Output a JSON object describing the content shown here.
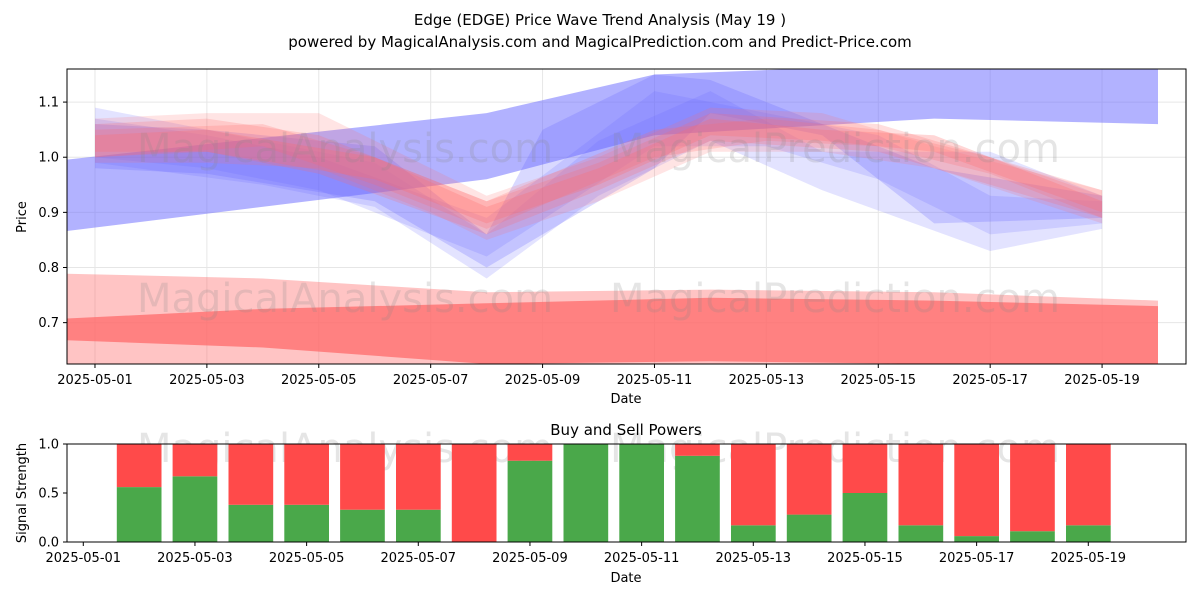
{
  "title_line1": "Edge (EDGE) Price Wave Trend Analysis (May 19 )",
  "title_line2": "powered by MagicalAnalysis.com and MagicalPrediction.com and Predict-Price.com",
  "watermarks": [
    "MagicalAnalysis.com",
    "MagicalPrediction.com"
  ],
  "colors": {
    "buy": "#4aa84a",
    "sell": "#ff4a4a",
    "blue_band": "#6666ff",
    "red_band": "#ff6b6b",
    "grid": "#e6e6e6"
  },
  "chart_data": [
    {
      "type": "area",
      "title": "",
      "xlabel": "Date",
      "ylabel": "Price",
      "grid": true,
      "xlim": [
        "2025-04-30T12:00",
        "2025-05-20T12:00"
      ],
      "ylim": [
        0.625,
        1.16
      ],
      "x_ticks": [
        "2025-05-01",
        "2025-05-03",
        "2025-05-05",
        "2025-05-07",
        "2025-05-09",
        "2025-05-11",
        "2025-05-13",
        "2025-05-15",
        "2025-05-17",
        "2025-05-19"
      ],
      "y_ticks": [
        "0.7",
        "0.8",
        "0.9",
        "1.0",
        "1.1"
      ],
      "series": [
        {
          "color": "blue",
          "opacity": 0.5,
          "x": [
            "2025-04-30",
            "2025-05-08",
            "2025-05-11",
            "2025-05-16",
            "2025-05-20"
          ],
          "lower": [
            0.86,
            0.96,
            1.04,
            1.07,
            1.06
          ],
          "upper": [
            0.99,
            1.08,
            1.15,
            1.17,
            1.16
          ]
        },
        {
          "color": "blue",
          "opacity": 0.25,
          "x": [
            "2025-05-01",
            "2025-05-03",
            "2025-05-06",
            "2025-05-08",
            "2025-05-09",
            "2025-05-11",
            "2025-05-12",
            "2025-05-14",
            "2025-05-16",
            "2025-05-19"
          ],
          "lower": [
            0.98,
            0.97,
            0.92,
            0.8,
            0.86,
            0.98,
            1.08,
            1.04,
            0.88,
            0.89
          ],
          "upper": [
            1.06,
            1.05,
            1.02,
            0.86,
            1.05,
            1.15,
            1.14,
            1.06,
            0.98,
            0.93
          ]
        },
        {
          "color": "blue",
          "opacity": 0.18,
          "x": [
            "2025-05-01",
            "2025-05-04",
            "2025-05-06",
            "2025-05-08",
            "2025-05-10",
            "2025-05-12",
            "2025-05-14",
            "2025-05-17",
            "2025-05-19"
          ],
          "lower": [
            0.99,
            0.95,
            0.91,
            0.78,
            0.93,
            1.03,
            0.94,
            0.83,
            0.87
          ],
          "upper": [
            1.09,
            1.03,
            0.99,
            0.86,
            1.03,
            1.12,
            1.01,
            1.01,
            0.93
          ]
        },
        {
          "color": "blue",
          "opacity": 0.18,
          "x": [
            "2025-05-01",
            "2025-05-03",
            "2025-05-05",
            "2025-05-08",
            "2025-05-11",
            "2025-05-13",
            "2025-05-15",
            "2025-05-17",
            "2025-05-19"
          ],
          "lower": [
            1.0,
            0.98,
            0.94,
            0.82,
            1.02,
            1.02,
            0.96,
            0.86,
            0.88
          ],
          "upper": [
            1.07,
            1.04,
            1.0,
            0.89,
            1.12,
            1.08,
            1.04,
            0.93,
            0.92
          ]
        },
        {
          "color": "red",
          "opacity": 0.18,
          "x": [
            "2025-05-01",
            "2025-05-03",
            "2025-05-05",
            "2025-05-07",
            "2025-05-08",
            "2025-05-10",
            "2025-05-12",
            "2025-05-14",
            "2025-05-16",
            "2025-05-19"
          ],
          "lower": [
            0.99,
            0.99,
            0.98,
            0.9,
            0.85,
            0.92,
            1.01,
            1.01,
            0.98,
            0.88
          ],
          "upper": [
            1.07,
            1.08,
            1.08,
            0.98,
            0.93,
            1.0,
            1.09,
            1.08,
            1.02,
            0.94
          ]
        },
        {
          "color": "red",
          "opacity": 0.22,
          "x": [
            "2025-05-01",
            "2025-05-03",
            "2025-05-05",
            "2025-05-08",
            "2025-05-10",
            "2025-05-12",
            "2025-05-15",
            "2025-05-17",
            "2025-05-19"
          ],
          "lower": [
            1.0,
            1.01,
            0.97,
            0.86,
            0.94,
            1.03,
            1.01,
            0.95,
            0.89
          ],
          "upper": [
            1.06,
            1.07,
            1.04,
            0.92,
            0.99,
            1.08,
            1.06,
            1.0,
            0.94
          ]
        },
        {
          "color": "red",
          "opacity": 0.22,
          "x": [
            "2025-05-01",
            "2025-05-04",
            "2025-05-06",
            "2025-05-08",
            "2025-05-11",
            "2025-05-13",
            "2025-05-15",
            "2025-05-17",
            "2025-05-19"
          ],
          "lower": [
            1.0,
            1.02,
            0.95,
            0.87,
            1.0,
            1.03,
            1.02,
            0.97,
            0.89
          ],
          "upper": [
            1.05,
            1.06,
            1.0,
            0.92,
            1.05,
            1.07,
            1.05,
            1.0,
            0.93
          ]
        },
        {
          "color": "red",
          "opacity": 0.28,
          "x": [
            "2025-05-01",
            "2025-05-03",
            "2025-05-06",
            "2025-05-08",
            "2025-05-10",
            "2025-05-12",
            "2025-05-14",
            "2025-05-16",
            "2025-05-19"
          ],
          "lower": [
            1.01,
            1.01,
            0.96,
            0.88,
            0.95,
            1.04,
            1.03,
            1.01,
            0.9
          ],
          "upper": [
            1.04,
            1.05,
            1.0,
            0.91,
            0.98,
            1.07,
            1.05,
            1.04,
            0.92
          ]
        },
        {
          "color": "red",
          "opacity": 0.4,
          "x": [
            "2025-04-30",
            "2025-05-04",
            "2025-05-08",
            "2025-05-12",
            "2025-05-16",
            "2025-05-20"
          ],
          "lower": [
            0.6,
            0.6,
            0.6,
            0.6,
            0.6,
            0.6
          ],
          "upper": [
            0.79,
            0.78,
            0.755,
            0.76,
            0.755,
            0.74
          ]
        },
        {
          "color": "red",
          "opacity": 0.75,
          "x": [
            "2025-04-30",
            "2025-05-04",
            "2025-05-08",
            "2025-05-12",
            "2025-05-16",
            "2025-05-20"
          ],
          "lower": [
            0.67,
            0.655,
            0.625,
            0.63,
            0.625,
            0.625
          ],
          "upper": [
            0.705,
            0.725,
            0.735,
            0.745,
            0.74,
            0.73
          ]
        }
      ]
    },
    {
      "type": "bar",
      "title": "Buy and Sell Powers",
      "xlabel": "Date",
      "ylabel": "Signal Strength",
      "xlim": [
        "2025-04-30T17:00",
        "2025-05-20T18:00"
      ],
      "ylim": [
        0,
        1.0
      ],
      "x_ticks": [
        "2025-05-01",
        "2025-05-03",
        "2025-05-05",
        "2025-05-07",
        "2025-05-09",
        "2025-05-11",
        "2025-05-13",
        "2025-05-15",
        "2025-05-17",
        "2025-05-19"
      ],
      "y_ticks": [
        "0.0",
        "0.5",
        "1.0"
      ],
      "categories": [
        "2025-05-02",
        "2025-05-03",
        "2025-05-04",
        "2025-05-05",
        "2025-05-06",
        "2025-05-07",
        "2025-05-08",
        "2025-05-09",
        "2025-05-10",
        "2025-05-11",
        "2025-05-12",
        "2025-05-13",
        "2025-05-14",
        "2025-05-15",
        "2025-05-16",
        "2025-05-17",
        "2025-05-18",
        "2025-05-19"
      ],
      "series": [
        {
          "name": "Buy",
          "color": "green",
          "values": [
            0.56,
            0.67,
            0.38,
            0.38,
            0.33,
            0.33,
            0.0,
            0.83,
            1.0,
            1.0,
            0.88,
            0.17,
            0.28,
            0.5,
            0.17,
            0.06,
            0.11,
            0.17
          ]
        },
        {
          "name": "Sell",
          "color": "red",
          "values": [
            0.44,
            0.33,
            0.62,
            0.62,
            0.67,
            0.67,
            1.0,
            0.17,
            0.0,
            0.0,
            0.12,
            0.83,
            0.72,
            0.5,
            0.83,
            0.94,
            0.89,
            0.83
          ]
        }
      ]
    }
  ]
}
